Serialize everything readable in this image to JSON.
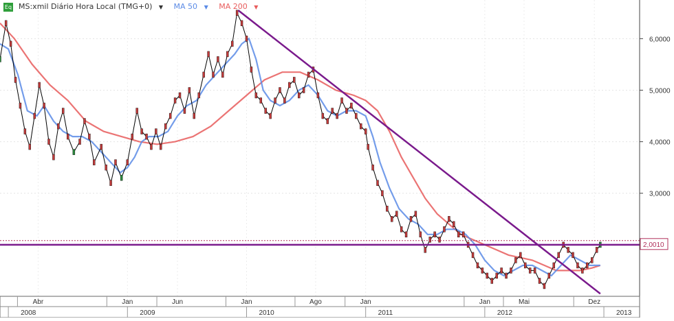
{
  "legend": {
    "badge": "Eq",
    "symbol": "MS:xmil Diário Hora Local (TMG+0)",
    "ma50": "MA 50",
    "ma200": "MA 200",
    "colors": {
      "symbol": "#333333",
      "ma50": "#5b8be6",
      "ma200": "#e85c5c",
      "badge": "#2e9e3a"
    }
  },
  "chart_data": {
    "type": "line",
    "title": "",
    "y_ticks": [
      "6,0000",
      "5,0000",
      "4,0000",
      "3,0000"
    ],
    "y_tick_values": [
      6,
      5,
      4,
      3
    ],
    "ylim": [
      1.0,
      6.75
    ],
    "x_month_labels": [
      {
        "label": "Abr",
        "t": 2008.25
      },
      {
        "label": "Jan",
        "t": 2009.0
      },
      {
        "label": "Jun",
        "t": 2009.42
      },
      {
        "label": "Jan",
        "t": 2010.0
      },
      {
        "label": "Ago",
        "t": 2010.58
      },
      {
        "label": "Jan",
        "t": 2011.0
      },
      {
        "label": "Jan",
        "t": 2012.0
      },
      {
        "label": "Mai",
        "t": 2012.33
      },
      {
        "label": "Dez",
        "t": 2012.92
      }
    ],
    "x_year_labels": [
      {
        "label": "2008",
        "t": 2008.0
      },
      {
        "label": "2009",
        "t": 2009.0
      },
      {
        "label": "2010",
        "t": 2010.0
      },
      {
        "label": "2011",
        "t": 2011.0
      },
      {
        "label": "2012",
        "t": 2012.0
      },
      {
        "label": "2013",
        "t": 2013.0
      }
    ],
    "xlim": [
      2007.93,
      2013.3
    ],
    "current_value_label": "2,0010",
    "current_value": 2.001,
    "price_series": {
      "name": "MS:xmil",
      "color": "#000000",
      "points": [
        [
          2007.93,
          5.6
        ],
        [
          2007.98,
          6.3
        ],
        [
          2008.02,
          5.9
        ],
        [
          2008.06,
          5.2
        ],
        [
          2008.1,
          4.7
        ],
        [
          2008.14,
          4.2
        ],
        [
          2008.18,
          3.9
        ],
        [
          2008.22,
          4.5
        ],
        [
          2008.26,
          5.1
        ],
        [
          2008.3,
          4.7
        ],
        [
          2008.34,
          4.0
        ],
        [
          2008.38,
          3.7
        ],
        [
          2008.42,
          4.3
        ],
        [
          2008.46,
          4.6
        ],
        [
          2008.5,
          4.1
        ],
        [
          2008.55,
          3.8
        ],
        [
          2008.6,
          4.0
        ],
        [
          2008.64,
          4.4
        ],
        [
          2008.68,
          4.1
        ],
        [
          2008.72,
          3.6
        ],
        [
          2008.78,
          3.9
        ],
        [
          2008.82,
          3.5
        ],
        [
          2008.86,
          3.2
        ],
        [
          2008.9,
          3.6
        ],
        [
          2008.95,
          3.3
        ],
        [
          2009.0,
          3.6
        ],
        [
          2009.04,
          4.1
        ],
        [
          2009.08,
          4.6
        ],
        [
          2009.12,
          4.2
        ],
        [
          2009.16,
          4.1
        ],
        [
          2009.2,
          3.9
        ],
        [
          2009.24,
          4.2
        ],
        [
          2009.28,
          3.9
        ],
        [
          2009.32,
          4.3
        ],
        [
          2009.36,
          4.5
        ],
        [
          2009.4,
          4.8
        ],
        [
          2009.44,
          4.9
        ],
        [
          2009.48,
          4.6
        ],
        [
          2009.52,
          5.0
        ],
        [
          2009.56,
          4.5
        ],
        [
          2009.6,
          4.9
        ],
        [
          2009.64,
          5.3
        ],
        [
          2009.68,
          5.7
        ],
        [
          2009.72,
          5.3
        ],
        [
          2009.76,
          5.6
        ],
        [
          2009.8,
          5.3
        ],
        [
          2009.84,
          5.7
        ],
        [
          2009.88,
          5.9
        ],
        [
          2009.92,
          6.5
        ],
        [
          2009.96,
          6.3
        ],
        [
          2010.0,
          6.0
        ],
        [
          2010.04,
          5.4
        ],
        [
          2010.08,
          4.9
        ],
        [
          2010.12,
          4.8
        ],
        [
          2010.16,
          4.6
        ],
        [
          2010.2,
          4.5
        ],
        [
          2010.24,
          4.8
        ],
        [
          2010.28,
          5.0
        ],
        [
          2010.32,
          4.8
        ],
        [
          2010.36,
          5.1
        ],
        [
          2010.4,
          5.2
        ],
        [
          2010.44,
          4.9
        ],
        [
          2010.48,
          5.0
        ],
        [
          2010.52,
          5.3
        ],
        [
          2010.56,
          5.4
        ],
        [
          2010.6,
          4.9
        ],
        [
          2010.64,
          4.5
        ],
        [
          2010.68,
          4.4
        ],
        [
          2010.72,
          4.6
        ],
        [
          2010.76,
          4.5
        ],
        [
          2010.8,
          4.8
        ],
        [
          2010.84,
          4.6
        ],
        [
          2010.88,
          4.7
        ],
        [
          2010.92,
          4.5
        ],
        [
          2010.96,
          4.3
        ],
        [
          2011.0,
          4.2
        ],
        [
          2011.02,
          3.9
        ],
        [
          2011.06,
          3.5
        ],
        [
          2011.1,
          3.2
        ],
        [
          2011.14,
          3.0
        ],
        [
          2011.18,
          2.7
        ],
        [
          2011.22,
          2.5
        ],
        [
          2011.26,
          2.6
        ],
        [
          2011.3,
          2.3
        ],
        [
          2011.34,
          2.2
        ],
        [
          2011.38,
          2.5
        ],
        [
          2011.42,
          2.6
        ],
        [
          2011.46,
          2.2
        ],
        [
          2011.5,
          1.9
        ],
        [
          2011.54,
          2.1
        ],
        [
          2011.58,
          2.2
        ],
        [
          2011.62,
          2.1
        ],
        [
          2011.66,
          2.3
        ],
        [
          2011.7,
          2.5
        ],
        [
          2011.74,
          2.4
        ],
        [
          2011.78,
          2.2
        ],
        [
          2011.82,
          2.2
        ],
        [
          2011.86,
          2.0
        ],
        [
          2011.9,
          1.8
        ],
        [
          2011.94,
          1.6
        ],
        [
          2011.98,
          1.5
        ],
        [
          2012.02,
          1.4
        ],
        [
          2012.06,
          1.3
        ],
        [
          2012.1,
          1.4
        ],
        [
          2012.14,
          1.5
        ],
        [
          2012.18,
          1.4
        ],
        [
          2012.22,
          1.5
        ],
        [
          2012.26,
          1.7
        ],
        [
          2012.3,
          1.8
        ],
        [
          2012.34,
          1.6
        ],
        [
          2012.38,
          1.5
        ],
        [
          2012.42,
          1.5
        ],
        [
          2012.46,
          1.3
        ],
        [
          2012.5,
          1.2
        ],
        [
          2012.54,
          1.4
        ],
        [
          2012.58,
          1.6
        ],
        [
          2012.62,
          1.8
        ],
        [
          2012.66,
          2.0
        ],
        [
          2012.7,
          1.9
        ],
        [
          2012.74,
          1.8
        ],
        [
          2012.78,
          1.6
        ],
        [
          2012.82,
          1.5
        ],
        [
          2012.86,
          1.6
        ],
        [
          2012.9,
          1.7
        ],
        [
          2012.94,
          1.9
        ],
        [
          2012.97,
          2.0
        ]
      ]
    },
    "ma50": {
      "name": "MA 50",
      "color": "#5b8be6",
      "points": [
        [
          2007.93,
          5.9
        ],
        [
          2008.0,
          5.8
        ],
        [
          2008.08,
          5.3
        ],
        [
          2008.16,
          4.6
        ],
        [
          2008.24,
          4.5
        ],
        [
          2008.3,
          4.7
        ],
        [
          2008.38,
          4.4
        ],
        [
          2008.46,
          4.2
        ],
        [
          2008.54,
          4.1
        ],
        [
          2008.62,
          4.1
        ],
        [
          2008.7,
          4.0
        ],
        [
          2008.78,
          3.8
        ],
        [
          2008.86,
          3.6
        ],
        [
          2008.94,
          3.4
        ],
        [
          2009.0,
          3.5
        ],
        [
          2009.06,
          3.7
        ],
        [
          2009.12,
          4.0
        ],
        [
          2009.18,
          4.1
        ],
        [
          2009.26,
          4.1
        ],
        [
          2009.34,
          4.2
        ],
        [
          2009.42,
          4.5
        ],
        [
          2009.5,
          4.7
        ],
        [
          2009.58,
          4.8
        ],
        [
          2009.66,
          5.1
        ],
        [
          2009.74,
          5.3
        ],
        [
          2009.82,
          5.5
        ],
        [
          2009.9,
          5.7
        ],
        [
          2009.96,
          5.9
        ],
        [
          2010.02,
          6.0
        ],
        [
          2010.08,
          5.6
        ],
        [
          2010.14,
          5.0
        ],
        [
          2010.2,
          4.8
        ],
        [
          2010.28,
          4.7
        ],
        [
          2010.36,
          4.8
        ],
        [
          2010.44,
          5.0
        ],
        [
          2010.52,
          5.1
        ],
        [
          2010.6,
          4.9
        ],
        [
          2010.68,
          4.6
        ],
        [
          2010.76,
          4.5
        ],
        [
          2010.84,
          4.6
        ],
        [
          2010.92,
          4.6
        ],
        [
          2011.0,
          4.5
        ],
        [
          2011.06,
          4.1
        ],
        [
          2011.12,
          3.6
        ],
        [
          2011.2,
          3.1
        ],
        [
          2011.28,
          2.7
        ],
        [
          2011.36,
          2.5
        ],
        [
          2011.44,
          2.4
        ],
        [
          2011.52,
          2.2
        ],
        [
          2011.6,
          2.2
        ],
        [
          2011.68,
          2.3
        ],
        [
          2011.76,
          2.3
        ],
        [
          2011.84,
          2.2
        ],
        [
          2011.92,
          2.0
        ],
        [
          2012.0,
          1.7
        ],
        [
          2012.08,
          1.5
        ],
        [
          2012.16,
          1.4
        ],
        [
          2012.24,
          1.5
        ],
        [
          2012.32,
          1.6
        ],
        [
          2012.4,
          1.6
        ],
        [
          2012.48,
          1.5
        ],
        [
          2012.56,
          1.4
        ],
        [
          2012.64,
          1.6
        ],
        [
          2012.72,
          1.8
        ],
        [
          2012.8,
          1.7
        ],
        [
          2012.88,
          1.6
        ],
        [
          2012.97,
          1.6
        ]
      ]
    },
    "ma200": {
      "name": "MA 200",
      "color": "#e85c5c",
      "points": [
        [
          2007.93,
          6.3
        ],
        [
          2008.05,
          6.0
        ],
        [
          2008.2,
          5.5
        ],
        [
          2008.35,
          5.1
        ],
        [
          2008.5,
          4.8
        ],
        [
          2008.65,
          4.4
        ],
        [
          2008.8,
          4.2
        ],
        [
          2008.95,
          4.1
        ],
        [
          2009.1,
          4.0
        ],
        [
          2009.25,
          3.95
        ],
        [
          2009.4,
          4.0
        ],
        [
          2009.55,
          4.1
        ],
        [
          2009.7,
          4.3
        ],
        [
          2009.85,
          4.6
        ],
        [
          2010.0,
          4.9
        ],
        [
          2010.15,
          5.2
        ],
        [
          2010.3,
          5.35
        ],
        [
          2010.45,
          5.35
        ],
        [
          2010.6,
          5.2
        ],
        [
          2010.75,
          5.0
        ],
        [
          2010.9,
          4.9
        ],
        [
          2011.0,
          4.8
        ],
        [
          2011.1,
          4.6
        ],
        [
          2011.2,
          4.2
        ],
        [
          2011.3,
          3.7
        ],
        [
          2011.4,
          3.3
        ],
        [
          2011.5,
          2.9
        ],
        [
          2011.6,
          2.6
        ],
        [
          2011.7,
          2.4
        ],
        [
          2011.8,
          2.2
        ],
        [
          2011.9,
          2.1
        ],
        [
          2012.0,
          2.0
        ],
        [
          2012.1,
          1.9
        ],
        [
          2012.2,
          1.8
        ],
        [
          2012.3,
          1.75
        ],
        [
          2012.4,
          1.7
        ],
        [
          2012.5,
          1.6
        ],
        [
          2012.6,
          1.5
        ],
        [
          2012.7,
          1.5
        ],
        [
          2012.8,
          1.5
        ],
        [
          2012.9,
          1.55
        ],
        [
          2012.97,
          1.6
        ]
      ]
    },
    "trendlines": [
      {
        "color": "#7a1a8c",
        "from": [
          2009.93,
          6.55
        ],
        "to": [
          2012.97,
          1.05
        ]
      },
      {
        "color": "#7a1a8c",
        "from": [
          2007.93,
          2.0
        ],
        "to": [
          2013.3,
          2.0
        ]
      }
    ]
  }
}
